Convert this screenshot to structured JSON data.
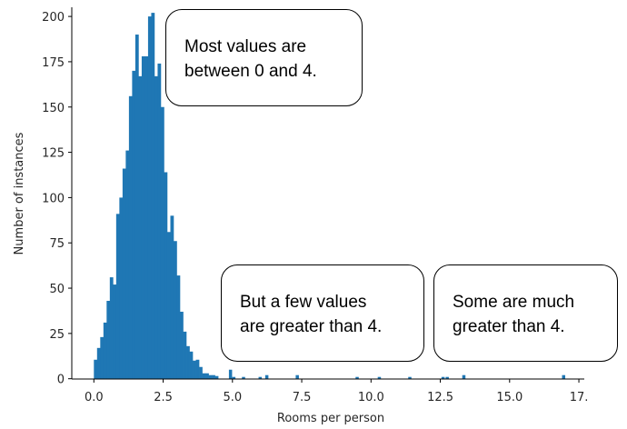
{
  "chart_data": {
    "type": "bar",
    "subtype": "histogram",
    "title": "",
    "xlabel": "Rooms per person",
    "ylabel": "Number of instances",
    "xlim": [
      -0.79,
      17.7
    ],
    "ylim": [
      0,
      205
    ],
    "xticks": [
      0,
      2.5,
      5,
      7.5,
      10,
      12.5,
      15,
      17.5
    ],
    "xtick_labels": [
      "0.0",
      "2.5",
      "5.0",
      "7.5",
      "10.0",
      "12.5",
      "15.0",
      "17."
    ],
    "yticks": [
      0,
      25,
      50,
      75,
      100,
      125,
      150,
      175,
      200
    ],
    "ytick_labels": [
      "0",
      "25",
      "50",
      "75",
      "100",
      "125",
      "150",
      "175",
      "200"
    ],
    "grid": false,
    "color": "#1f77b4",
    "bin_width": 0.115,
    "main_bins_start": 0.0,
    "main_counts": [
      10.5,
      17,
      23,
      31,
      43,
      56,
      52,
      91,
      100,
      116,
      126,
      156,
      170,
      190,
      167,
      178,
      178,
      200,
      202,
      167,
      174,
      150,
      114,
      81,
      90,
      76,
      57,
      37,
      26,
      18,
      15,
      10,
      10.5,
      6.5,
      3,
      3,
      2,
      2,
      1.5
    ],
    "outliers": [
      {
        "x": 4.93,
        "count": 5
      },
      {
        "x": 5.05,
        "count": 1
      },
      {
        "x": 5.4,
        "count": 1
      },
      {
        "x": 6.0,
        "count": 1
      },
      {
        "x": 6.24,
        "count": 2
      },
      {
        "x": 7.34,
        "count": 2
      },
      {
        "x": 9.5,
        "count": 1
      },
      {
        "x": 10.3,
        "count": 1
      },
      {
        "x": 11.4,
        "count": 1
      },
      {
        "x": 12.6,
        "count": 1
      },
      {
        "x": 12.75,
        "count": 1
      },
      {
        "x": 13.35,
        "count": 2
      },
      {
        "x": 16.95,
        "count": 2
      }
    ],
    "annotations": [
      "Most values are\nbetween 0 and 4.",
      "But a few values\nare greater than 4.",
      "Some are much\ngreater than 4."
    ]
  }
}
